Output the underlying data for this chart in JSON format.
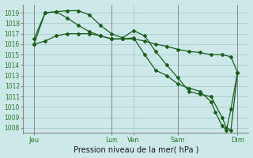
{
  "background_color": "#cce8e8",
  "grid_color": "#aacccc",
  "line_color": "#1a5c1a",
  "marker_color": "#1a5c1a",
  "title": "Pression niveau de la mer( hPa )",
  "ylabel_values": [
    1008,
    1009,
    1010,
    1011,
    1012,
    1013,
    1014,
    1015,
    1016,
    1017,
    1018,
    1019
  ],
  "ylim": [
    1007.5,
    1019.8
  ],
  "xlim": [
    -2,
    100
  ],
  "x_tick_labels": [
    "Jeu",
    "Lun",
    "Ven",
    "Sam",
    "Dim"
  ],
  "x_tick_positions": [
    3,
    38,
    48,
    68,
    95
  ],
  "vlines": [
    3,
    38,
    68,
    95
  ],
  "series1": [
    [
      3,
      1016.5
    ],
    [
      8,
      1019.0
    ],
    [
      13,
      1019.1
    ],
    [
      18,
      1019.2
    ],
    [
      23,
      1019.2
    ],
    [
      28,
      1018.8
    ],
    [
      33,
      1017.8
    ],
    [
      38,
      1017.0
    ],
    [
      43,
      1016.6
    ],
    [
      48,
      1017.3
    ],
    [
      53,
      1016.8
    ],
    [
      58,
      1015.3
    ],
    [
      63,
      1014.0
    ],
    [
      68,
      1012.8
    ],
    [
      73,
      1011.5
    ],
    [
      78,
      1011.2
    ],
    [
      83,
      1011.0
    ],
    [
      88,
      1009.0
    ],
    [
      90,
      1008.0
    ],
    [
      92,
      1007.8
    ],
    [
      95,
      1013.3
    ]
  ],
  "series2": [
    [
      3,
      1016.0
    ],
    [
      8,
      1016.3
    ],
    [
      13,
      1016.8
    ],
    [
      18,
      1017.0
    ],
    [
      23,
      1017.0
    ],
    [
      28,
      1017.0
    ],
    [
      33,
      1016.8
    ],
    [
      38,
      1016.5
    ],
    [
      43,
      1016.5
    ],
    [
      48,
      1016.5
    ],
    [
      53,
      1016.3
    ],
    [
      58,
      1016.0
    ],
    [
      63,
      1015.8
    ],
    [
      68,
      1015.5
    ],
    [
      73,
      1015.3
    ],
    [
      78,
      1015.2
    ],
    [
      83,
      1015.0
    ],
    [
      88,
      1015.0
    ],
    [
      92,
      1014.8
    ],
    [
      95,
      1013.3
    ]
  ],
  "series3": [
    [
      3,
      1016.0
    ],
    [
      8,
      1019.0
    ],
    [
      13,
      1019.1
    ],
    [
      18,
      1018.5
    ],
    [
      23,
      1017.8
    ],
    [
      28,
      1017.2
    ],
    [
      33,
      1016.8
    ],
    [
      38,
      1016.5
    ],
    [
      43,
      1016.5
    ],
    [
      48,
      1016.6
    ],
    [
      53,
      1015.0
    ],
    [
      58,
      1013.5
    ],
    [
      63,
      1013.0
    ],
    [
      68,
      1012.2
    ],
    [
      73,
      1011.8
    ],
    [
      78,
      1011.5
    ],
    [
      83,
      1010.5
    ],
    [
      85,
      1009.5
    ],
    [
      88,
      1008.2
    ],
    [
      90,
      1007.8
    ],
    [
      92,
      1009.8
    ],
    [
      95,
      1013.3
    ]
  ]
}
